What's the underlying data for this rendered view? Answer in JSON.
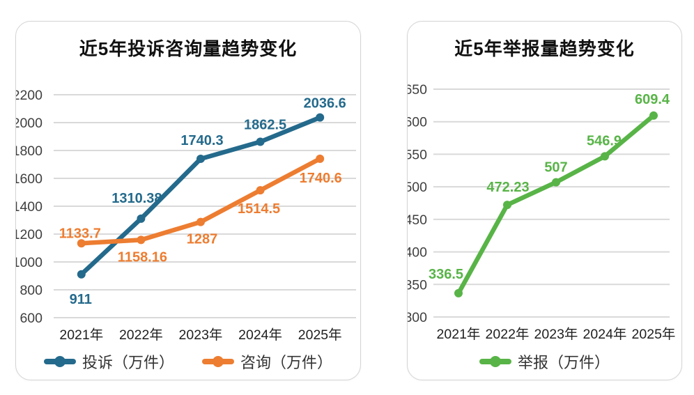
{
  "colors": {
    "page_background": "#ffffff",
    "card_border": "#d4d4d4",
    "gridline": "#d9d9d9",
    "y_tick_text": "#3f3f3f",
    "x_tick_text": "#1f1f1f",
    "title_text": "#111111",
    "legend_text": "#333333",
    "complaint_blue": "#246a8c",
    "consult_orange": "#ed7d31",
    "report_green": "#58b447"
  },
  "chart_data": [
    {
      "type": "line",
      "title": "近5年投诉咨询量趋势变化",
      "categories": [
        "2021年",
        "2022年",
        "2023年",
        "2024年",
        "2025年"
      ],
      "ylim": [
        600,
        2200
      ],
      "ytick_step": 200,
      "grid": true,
      "legend_position": "bottom",
      "series": [
        {
          "name": "投诉（万件）",
          "color": "#246a8c",
          "values": [
            911,
            1310.38,
            1740.3,
            1862.5,
            2036.6
          ],
          "label_offsets": [
            [
              -1,
              42
            ],
            [
              -6,
              -23
            ],
            [
              2,
              -20
            ],
            [
              7,
              -18
            ],
            [
              7,
              -14
            ]
          ]
        },
        {
          "name": "咨询（万件）",
          "color": "#ed7d31",
          "values": [
            1133.7,
            1158.16,
            1287,
            1514.5,
            1740.6
          ],
          "label_offsets": [
            [
              -2,
              -8
            ],
            [
              2,
              31
            ],
            [
              2,
              31
            ],
            [
              -2,
              33
            ],
            [
              1,
              34
            ]
          ]
        }
      ]
    },
    {
      "type": "line",
      "title": "近5年举报量趋势变化",
      "categories": [
        "2021年",
        "2022年",
        "2023年",
        "2024年",
        "2025年"
      ],
      "ylim": [
        300,
        650
      ],
      "ytick_step": 50,
      "grid": true,
      "legend_position": "bottom",
      "series": [
        {
          "name": "举报（万件）",
          "color": "#58b447",
          "values": [
            336.5,
            472.23,
            507,
            546.9,
            609.4
          ],
          "label_offsets": [
            [
              -18,
              -21
            ],
            [
              1,
              -19
            ],
            [
              0,
              -15
            ],
            [
              -1,
              -16
            ],
            [
              -2,
              -17
            ]
          ]
        }
      ]
    }
  ]
}
